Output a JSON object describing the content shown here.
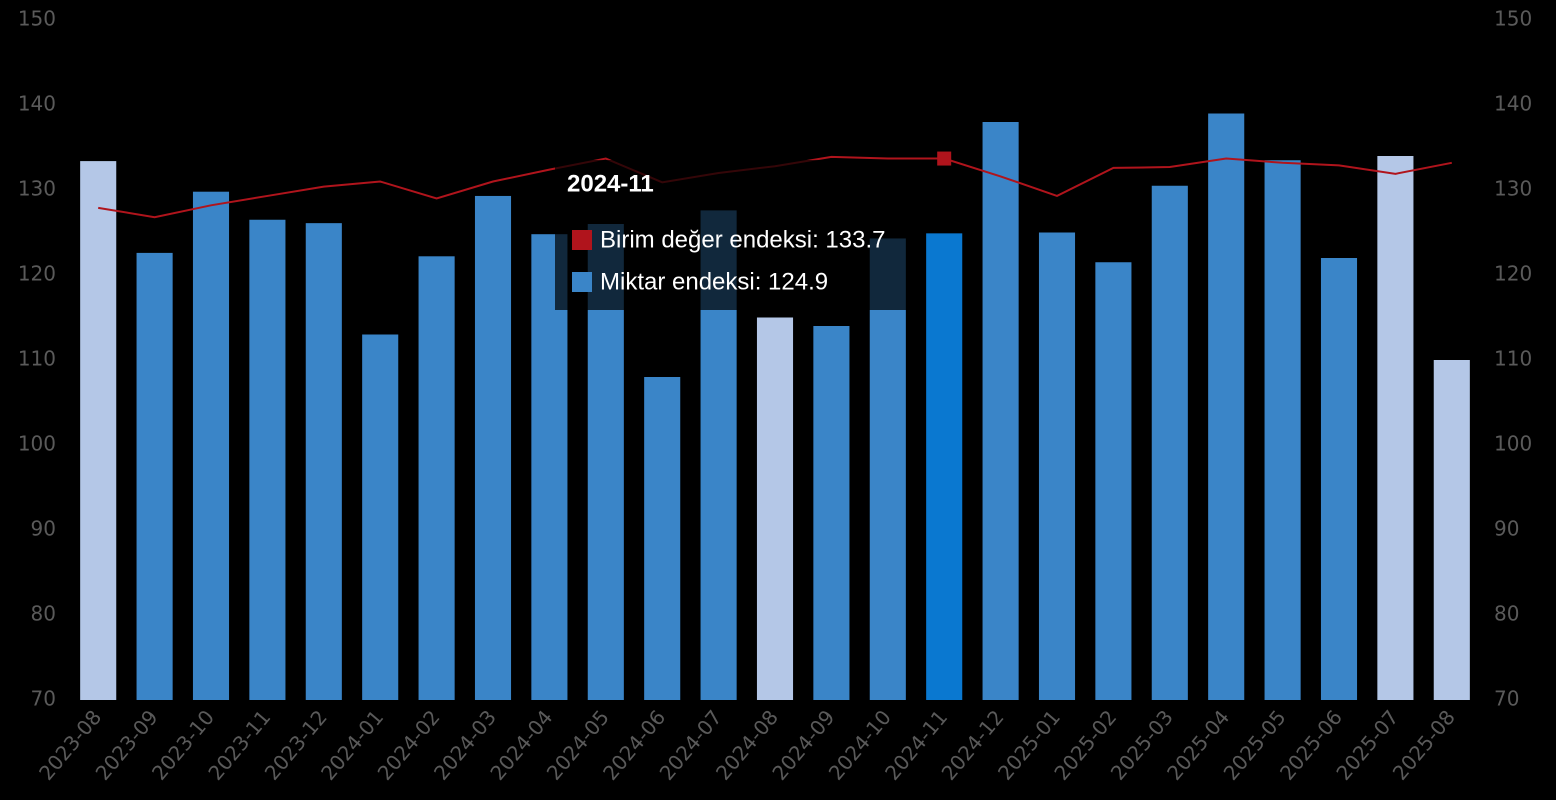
{
  "chart_data": {
    "type": "bar",
    "categories": [
      "2023-08",
      "2023-09",
      "2023-10",
      "2023-11",
      "2023-12",
      "2024-01",
      "2024-02",
      "2024-03",
      "2024-04",
      "2024-05",
      "2024-06",
      "2024-07",
      "2024-08",
      "2024-09",
      "2024-10",
      "2024-11",
      "2024-12",
      "2025-01",
      "2025-02",
      "2025-03",
      "2025-04",
      "2025-05",
      "2025-06",
      "2025-07",
      "2025-08"
    ],
    "series": [
      {
        "name": "Miktar endeksi",
        "type": "bar",
        "color": "#3a85c8",
        "colors": [
          "#b4c7e7",
          "#3a85c8",
          "#3a85c8",
          "#3a85c8",
          "#3a85c8",
          "#3a85c8",
          "#3a85c8",
          "#3a85c8",
          "#3a85c8",
          "#3a85c8",
          "#3a85c8",
          "#3a85c8",
          "#b4c7e7",
          "#3a85c8",
          "#3a85c8",
          "#0a78d0",
          "#3a85c8",
          "#3a85c8",
          "#3a85c8",
          "#3a85c8",
          "#3a85c8",
          "#3a85c8",
          "#3a85c8",
          "#b4c7e7",
          "#b4c7e7"
        ],
        "values": [
          133.4,
          122.6,
          129.8,
          126.5,
          126.1,
          113,
          122.2,
          129.3,
          124.8,
          126,
          108,
          127.6,
          115,
          114,
          124.3,
          124.9,
          138,
          125,
          121.5,
          130.5,
          139,
          133.5,
          122,
          134,
          110
        ]
      },
      {
        "name": "Birim değer endeksi",
        "type": "line",
        "axis": "y2",
        "color": "#b0141c",
        "values": [
          127.9,
          126.8,
          128.2,
          129.3,
          130.4,
          131,
          129,
          131,
          132.4,
          133.7,
          130.9,
          132,
          132.8,
          133.9,
          133.7,
          133.7,
          131.6,
          129.3,
          132.6,
          132.7,
          133.7,
          133.2,
          132.9,
          131.9,
          133.2
        ]
      }
    ],
    "ylim": [
      70,
      150
    ],
    "yticks": [
      70,
      80,
      90,
      100,
      110,
      120,
      130,
      140,
      150
    ],
    "y2lim": [
      70,
      150
    ],
    "y2ticks": [
      70,
      80,
      90,
      100,
      110,
      120,
      130,
      140,
      150
    ],
    "tooltip": {
      "title": "2024-11",
      "items": [
        "Birim değer endeksi: 133.7",
        "Miktar endeksi: 124.9"
      ]
    }
  }
}
